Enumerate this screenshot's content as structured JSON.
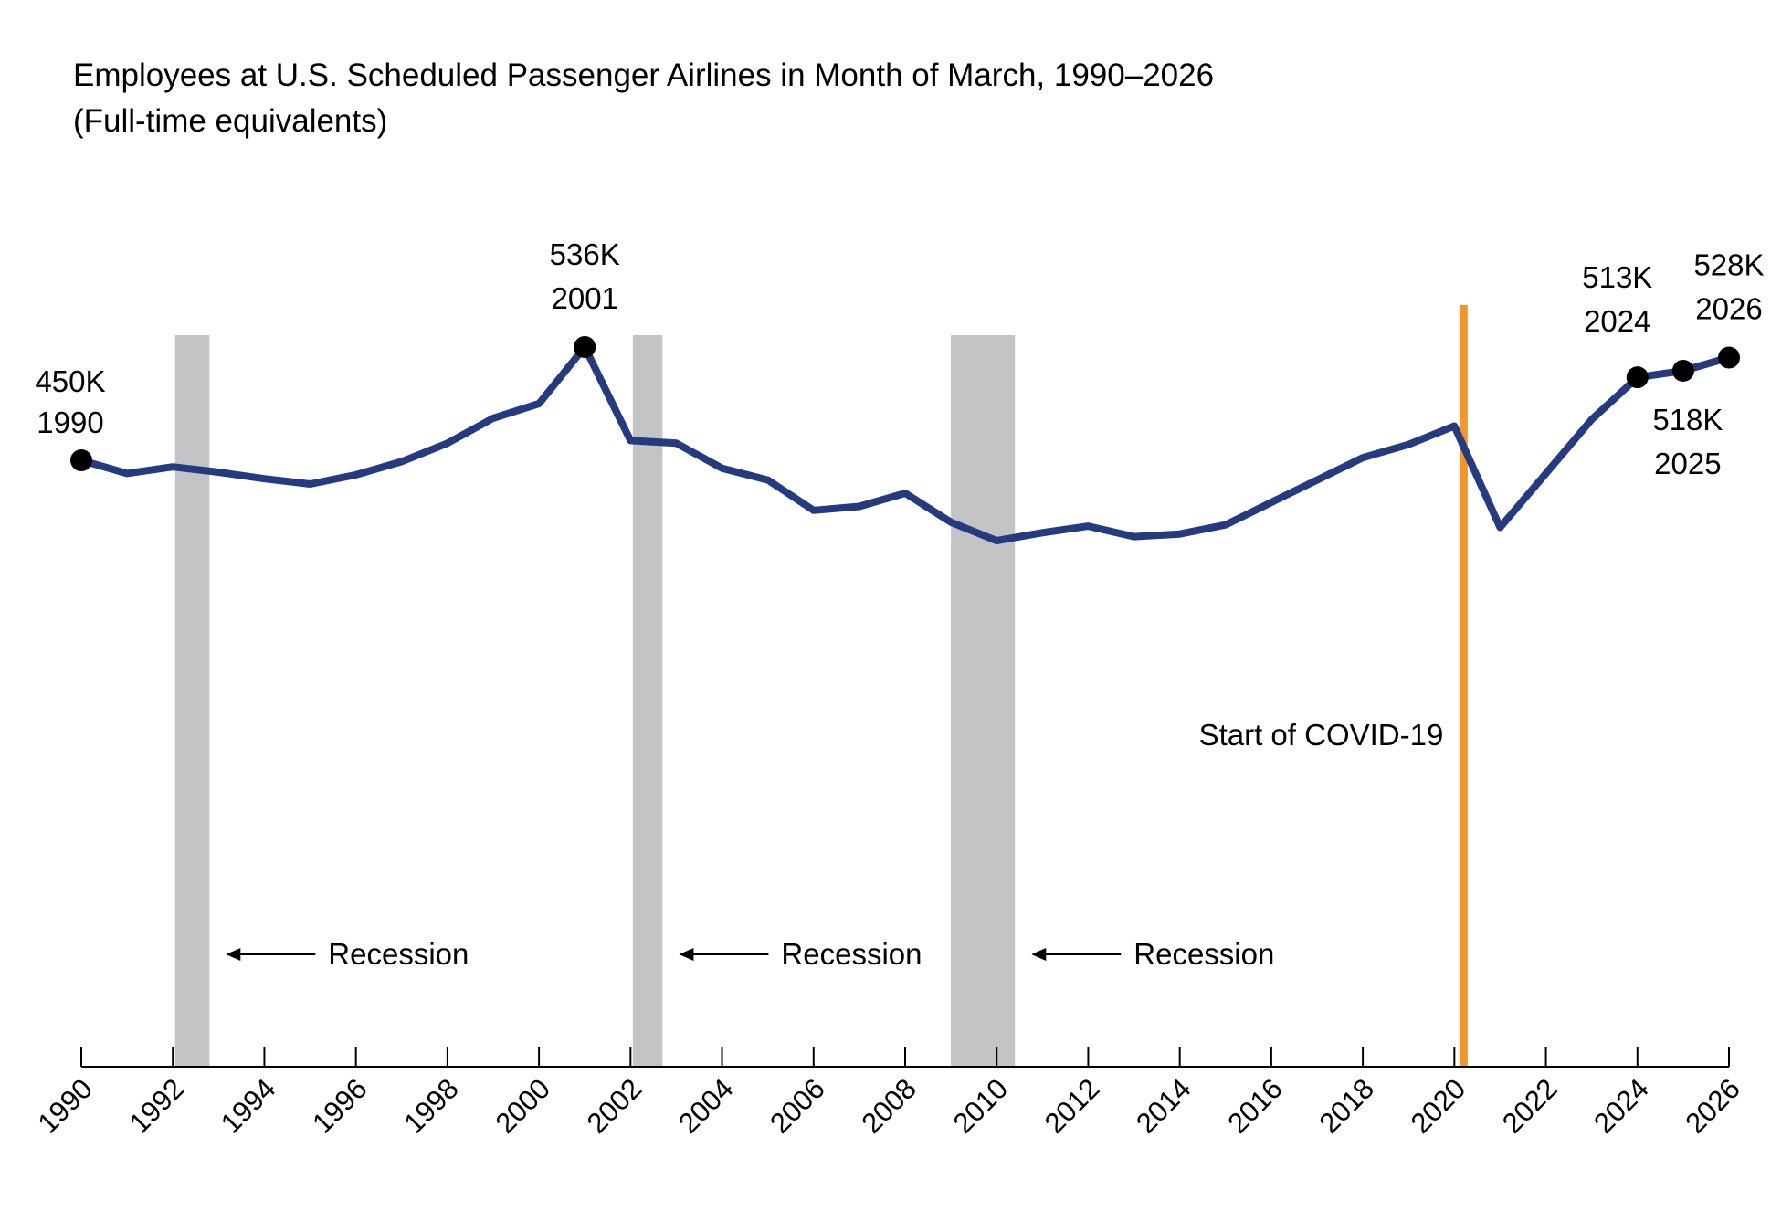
{
  "chart_data": {
    "type": "line",
    "title": "Employees at U.S. Scheduled Passenger Airlines in Month of March, 1990–2026",
    "subtitle": "(Full-time equivalents)",
    "xlabel": "",
    "ylabel": "",
    "grid": false,
    "x_ticks": [
      "1990",
      "1992",
      "1994",
      "1996",
      "1998",
      "2000",
      "2002",
      "2004",
      "2006",
      "2008",
      "2010",
      "2012",
      "2014",
      "2016",
      "2018",
      "2020",
      "2022",
      "2024",
      "2026"
    ],
    "xlim": [
      1990,
      2026
    ],
    "ylim": [
      0,
      600
    ],
    "series": [
      {
        "color": "#263a80",
        "x": [
          1990,
          1991,
          1992,
          1993,
          1994,
          1995,
          1996,
          1997,
          1998,
          1999,
          2000,
          2001,
          2002,
          2003,
          2004,
          2005,
          2006,
          2007,
          2008,
          2009,
          2010,
          2011,
          2012,
          2013,
          2014,
          2015,
          2016,
          2017,
          2018,
          2019,
          2020,
          2021,
          2022,
          2023,
          2024,
          2025,
          2026
        ],
        "values": [
          450,
          440,
          445,
          441,
          436,
          432,
          439,
          449,
          463,
          482,
          493,
          536,
          465,
          463,
          444,
          435,
          412,
          415,
          425,
          403,
          389,
          395,
          400,
          392,
          394,
          401,
          418,
          435,
          452,
          462,
          476,
          399,
          440,
          481,
          513,
          518,
          528
        ]
      }
    ],
    "highlight_points": [
      {
        "x": 1990,
        "value_label": "450K",
        "year_label": "1990"
      },
      {
        "x": 2001,
        "value_label": "536K",
        "year_label": "2001"
      },
      {
        "x": 2024,
        "value_label": "513K",
        "year_label": "2024"
      },
      {
        "x": 2025,
        "value_label": "518K",
        "year_label": "2025"
      },
      {
        "x": 2026,
        "value_label": "528K",
        "year_label": "2026"
      }
    ],
    "recessions": [
      {
        "start": 1992.05,
        "end": 1992.8,
        "label": "Recession"
      },
      {
        "start": 2002.05,
        "end": 2002.7,
        "label": "Recession"
      },
      {
        "start": 2009.0,
        "end": 2010.4,
        "label": "Recession"
      }
    ],
    "covid_marker": {
      "x": 2020.2,
      "label": "Start of COVID-19",
      "color": "#f0962a"
    },
    "colors": {
      "line": "#263a80",
      "recession": "#c3c4c6",
      "covid": "#f0962a",
      "dot": "#000000"
    }
  }
}
